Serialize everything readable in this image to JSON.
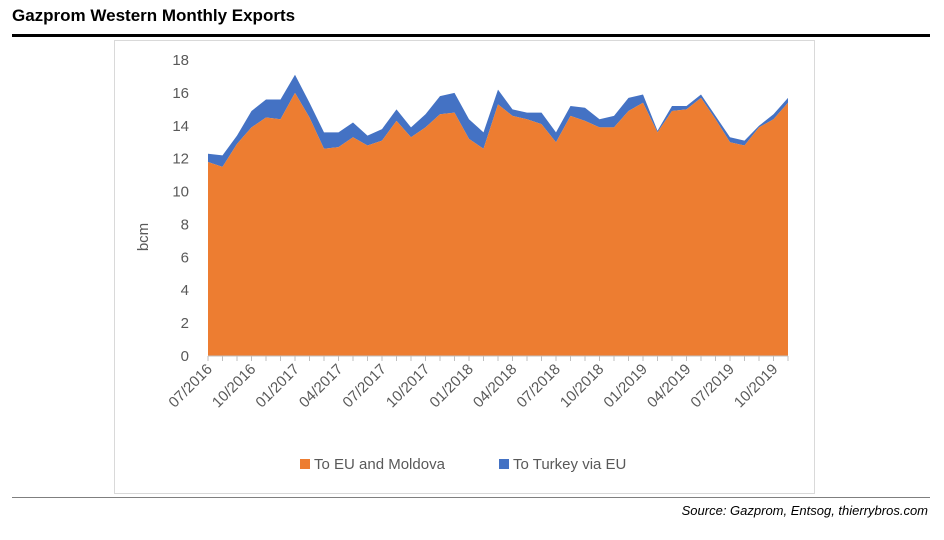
{
  "page": {
    "title": "Gazprom Western Monthly Exports",
    "source": "Source: Gazprom, Entsog, thierrybros.com"
  },
  "colors": {
    "eu": "#ED7D31",
    "turkey": "#4472C4",
    "axis": "#595959",
    "grid": "#d9d9d9"
  },
  "chart_data": {
    "type": "area",
    "stacked": true,
    "ylabel": "bcm",
    "ylim": [
      0,
      18
    ],
    "yticks": [
      0,
      2,
      4,
      6,
      8,
      10,
      12,
      14,
      16,
      18
    ],
    "grid": false,
    "legend_position": "bottom",
    "x": [
      "07/2016",
      "08/2016",
      "09/2016",
      "10/2016",
      "11/2016",
      "12/2016",
      "01/2017",
      "02/2017",
      "03/2017",
      "04/2017",
      "05/2017",
      "06/2017",
      "07/2017",
      "08/2017",
      "09/2017",
      "10/2017",
      "11/2017",
      "12/2017",
      "01/2018",
      "02/2018",
      "03/2018",
      "04/2018",
      "05/2018",
      "06/2018",
      "07/2018",
      "08/2018",
      "09/2018",
      "10/2018",
      "11/2018",
      "12/2018",
      "01/2019",
      "02/2019",
      "03/2019",
      "04/2019",
      "05/2019",
      "06/2019",
      "07/2019",
      "08/2019",
      "09/2019",
      "10/2019",
      "11/2019"
    ],
    "x_tick_labels": [
      "07/2016",
      "10/2016",
      "01/2017",
      "04/2017",
      "07/2017",
      "10/2017",
      "01/2018",
      "04/2018",
      "07/2018",
      "10/2018",
      "01/2019",
      "04/2019",
      "07/2019",
      "10/2019"
    ],
    "series": [
      {
        "name": "To EU and Moldova",
        "values": [
          11.8,
          11.5,
          12.9,
          13.9,
          14.5,
          14.4,
          16.0,
          14.5,
          12.6,
          12.7,
          13.3,
          12.8,
          13.1,
          14.3,
          13.3,
          13.9,
          14.7,
          14.8,
          13.2,
          12.6,
          15.3,
          14.6,
          14.4,
          14.1,
          13.0,
          14.6,
          14.3,
          13.9,
          13.9,
          14.9,
          15.4,
          13.6,
          14.9,
          15.0,
          15.7,
          14.4,
          13.0,
          12.8,
          13.9,
          14.4,
          15.4
        ]
      },
      {
        "name": "To Turkey via EU",
        "values": [
          0.5,
          0.7,
          0.5,
          1.0,
          1.1,
          1.2,
          1.1,
          0.9,
          1.0,
          0.9,
          0.9,
          0.6,
          0.7,
          0.7,
          0.6,
          0.8,
          1.1,
          1.2,
          1.2,
          1.0,
          0.9,
          0.4,
          0.4,
          0.7,
          0.6,
          0.6,
          0.8,
          0.5,
          0.7,
          0.8,
          0.5,
          0.1,
          0.3,
          0.2,
          0.2,
          0.2,
          0.3,
          0.3,
          0.1,
          0.3,
          0.3
        ]
      }
    ]
  }
}
